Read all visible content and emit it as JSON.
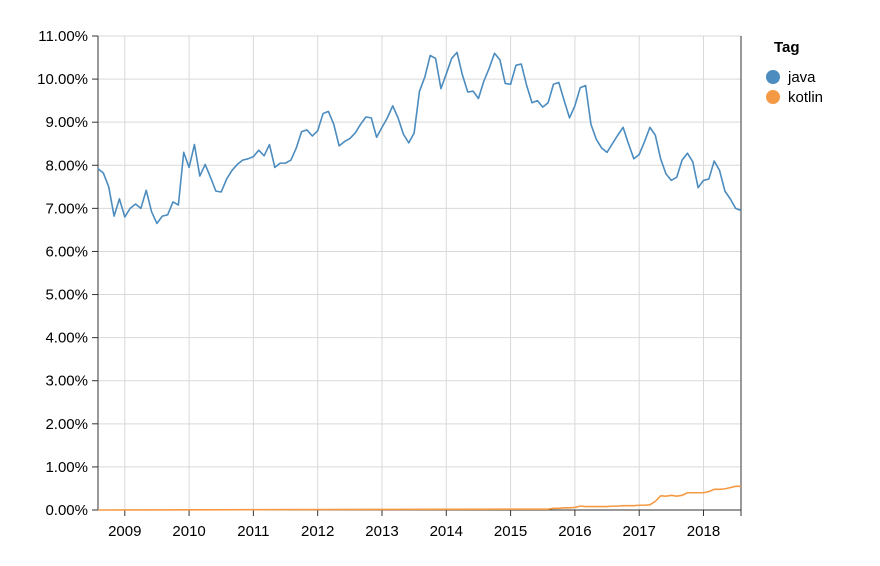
{
  "chart_data": {
    "type": "line",
    "title": "",
    "xlabel": "",
    "ylabel": "",
    "x_start": "2008-08",
    "x_end": "2018-08",
    "xlim": [
      "2008-08",
      "2018-08"
    ],
    "x_ticks": [
      "2009",
      "2010",
      "2011",
      "2012",
      "2013",
      "2014",
      "2015",
      "2016",
      "2017",
      "2018"
    ],
    "ylim": [
      0,
      11
    ],
    "y_ticks": [
      "0.00%",
      "1.00%",
      "2.00%",
      "3.00%",
      "4.00%",
      "5.00%",
      "6.00%",
      "7.00%",
      "8.00%",
      "9.00%",
      "10.00%",
      "11.00%"
    ],
    "y_unit": "%",
    "grid": true,
    "legend": {
      "title": "Tag",
      "placement": "top-right"
    },
    "series": [
      {
        "name": "java",
        "color": "#4c8cbf",
        "points": [
          {
            "x": "2008-08",
            "y": 7.92
          },
          {
            "x": "2008-09",
            "y": 7.82
          },
          {
            "x": "2008-10",
            "y": 7.5
          },
          {
            "x": "2008-11",
            "y": 6.82
          },
          {
            "x": "2008-12",
            "y": 7.22
          },
          {
            "x": "2009-01",
            "y": 6.8
          },
          {
            "x": "2009-02",
            "y": 7.0
          },
          {
            "x": "2009-03",
            "y": 7.1
          },
          {
            "x": "2009-04",
            "y": 7.0
          },
          {
            "x": "2009-05",
            "y": 7.42
          },
          {
            "x": "2009-06",
            "y": 6.92
          },
          {
            "x": "2009-07",
            "y": 6.65
          },
          {
            "x": "2009-08",
            "y": 6.82
          },
          {
            "x": "2009-09",
            "y": 6.85
          },
          {
            "x": "2009-10",
            "y": 7.15
          },
          {
            "x": "2009-11",
            "y": 7.08
          },
          {
            "x": "2009-12",
            "y": 8.3
          },
          {
            "x": "2010-01",
            "y": 7.95
          },
          {
            "x": "2010-02",
            "y": 8.48
          },
          {
            "x": "2010-03",
            "y": 7.75
          },
          {
            "x": "2010-04",
            "y": 8.02
          },
          {
            "x": "2010-05",
            "y": 7.72
          },
          {
            "x": "2010-06",
            "y": 7.4
          },
          {
            "x": "2010-07",
            "y": 7.38
          },
          {
            "x": "2010-08",
            "y": 7.68
          },
          {
            "x": "2010-09",
            "y": 7.88
          },
          {
            "x": "2010-10",
            "y": 8.02
          },
          {
            "x": "2010-11",
            "y": 8.12
          },
          {
            "x": "2010-12",
            "y": 8.15
          },
          {
            "x": "2011-01",
            "y": 8.2
          },
          {
            "x": "2011-02",
            "y": 8.35
          },
          {
            "x": "2011-03",
            "y": 8.22
          },
          {
            "x": "2011-04",
            "y": 8.48
          },
          {
            "x": "2011-05",
            "y": 7.95
          },
          {
            "x": "2011-06",
            "y": 8.05
          },
          {
            "x": "2011-07",
            "y": 8.05
          },
          {
            "x": "2011-08",
            "y": 8.12
          },
          {
            "x": "2011-09",
            "y": 8.4
          },
          {
            "x": "2011-10",
            "y": 8.78
          },
          {
            "x": "2011-11",
            "y": 8.82
          },
          {
            "x": "2011-12",
            "y": 8.68
          },
          {
            "x": "2012-01",
            "y": 8.8
          },
          {
            "x": "2012-02",
            "y": 9.2
          },
          {
            "x": "2012-03",
            "y": 9.25
          },
          {
            "x": "2012-04",
            "y": 8.95
          },
          {
            "x": "2012-05",
            "y": 8.45
          },
          {
            "x": "2012-06",
            "y": 8.55
          },
          {
            "x": "2012-07",
            "y": 8.62
          },
          {
            "x": "2012-08",
            "y": 8.75
          },
          {
            "x": "2012-09",
            "y": 8.95
          },
          {
            "x": "2012-10",
            "y": 9.12
          },
          {
            "x": "2012-11",
            "y": 9.1
          },
          {
            "x": "2012-12",
            "y": 8.65
          },
          {
            "x": "2013-01",
            "y": 8.88
          },
          {
            "x": "2013-02",
            "y": 9.1
          },
          {
            "x": "2013-03",
            "y": 9.38
          },
          {
            "x": "2013-04",
            "y": 9.1
          },
          {
            "x": "2013-05",
            "y": 8.72
          },
          {
            "x": "2013-06",
            "y": 8.52
          },
          {
            "x": "2013-07",
            "y": 8.75
          },
          {
            "x": "2013-08",
            "y": 9.72
          },
          {
            "x": "2013-09",
            "y": 10.05
          },
          {
            "x": "2013-10",
            "y": 10.55
          },
          {
            "x": "2013-11",
            "y": 10.48
          },
          {
            "x": "2013-12",
            "y": 9.78
          },
          {
            "x": "2014-01",
            "y": 10.12
          },
          {
            "x": "2014-02",
            "y": 10.48
          },
          {
            "x": "2014-03",
            "y": 10.62
          },
          {
            "x": "2014-04",
            "y": 10.1
          },
          {
            "x": "2014-05",
            "y": 9.7
          },
          {
            "x": "2014-06",
            "y": 9.72
          },
          {
            "x": "2014-07",
            "y": 9.55
          },
          {
            "x": "2014-08",
            "y": 9.95
          },
          {
            "x": "2014-09",
            "y": 10.25
          },
          {
            "x": "2014-10",
            "y": 10.6
          },
          {
            "x": "2014-11",
            "y": 10.45
          },
          {
            "x": "2014-12",
            "y": 9.9
          },
          {
            "x": "2015-01",
            "y": 9.88
          },
          {
            "x": "2015-02",
            "y": 10.32
          },
          {
            "x": "2015-03",
            "y": 10.35
          },
          {
            "x": "2015-04",
            "y": 9.85
          },
          {
            "x": "2015-05",
            "y": 9.45
          },
          {
            "x": "2015-06",
            "y": 9.5
          },
          {
            "x": "2015-07",
            "y": 9.35
          },
          {
            "x": "2015-08",
            "y": 9.45
          },
          {
            "x": "2015-09",
            "y": 9.88
          },
          {
            "x": "2015-10",
            "y": 9.92
          },
          {
            "x": "2015-11",
            "y": 9.5
          },
          {
            "x": "2015-12",
            "y": 9.1
          },
          {
            "x": "2016-01",
            "y": 9.38
          },
          {
            "x": "2016-02",
            "y": 9.8
          },
          {
            "x": "2016-03",
            "y": 9.85
          },
          {
            "x": "2016-04",
            "y": 8.95
          },
          {
            "x": "2016-05",
            "y": 8.6
          },
          {
            "x": "2016-06",
            "y": 8.4
          },
          {
            "x": "2016-07",
            "y": 8.3
          },
          {
            "x": "2016-08",
            "y": 8.5
          },
          {
            "x": "2016-09",
            "y": 8.7
          },
          {
            "x": "2016-10",
            "y": 8.88
          },
          {
            "x": "2016-11",
            "y": 8.5
          },
          {
            "x": "2016-12",
            "y": 8.15
          },
          {
            "x": "2017-01",
            "y": 8.25
          },
          {
            "x": "2017-02",
            "y": 8.55
          },
          {
            "x": "2017-03",
            "y": 8.88
          },
          {
            "x": "2017-04",
            "y": 8.7
          },
          {
            "x": "2017-05",
            "y": 8.15
          },
          {
            "x": "2017-06",
            "y": 7.8
          },
          {
            "x": "2017-07",
            "y": 7.65
          },
          {
            "x": "2017-08",
            "y": 7.72
          },
          {
            "x": "2017-09",
            "y": 8.12
          },
          {
            "x": "2017-10",
            "y": 8.28
          },
          {
            "x": "2017-11",
            "y": 8.08
          },
          {
            "x": "2017-12",
            "y": 7.48
          },
          {
            "x": "2018-01",
            "y": 7.65
          },
          {
            "x": "2018-02",
            "y": 7.68
          },
          {
            "x": "2018-03",
            "y": 8.1
          },
          {
            "x": "2018-04",
            "y": 7.88
          },
          {
            "x": "2018-05",
            "y": 7.4
          },
          {
            "x": "2018-06",
            "y": 7.22
          },
          {
            "x": "2018-07",
            "y": 7.0
          },
          {
            "x": "2018-08",
            "y": 6.95
          }
        ]
      },
      {
        "name": "kotlin",
        "color": "#f59a44",
        "points": [
          {
            "x": "2008-08",
            "y": 0.0
          },
          {
            "x": "2015-08",
            "y": 0.02
          },
          {
            "x": "2015-09",
            "y": 0.04
          },
          {
            "x": "2015-10",
            "y": 0.04
          },
          {
            "x": "2015-11",
            "y": 0.05
          },
          {
            "x": "2015-12",
            "y": 0.05
          },
          {
            "x": "2016-01",
            "y": 0.06
          },
          {
            "x": "2016-02",
            "y": 0.09
          },
          {
            "x": "2016-03",
            "y": 0.08
          },
          {
            "x": "2016-04",
            "y": 0.08
          },
          {
            "x": "2016-05",
            "y": 0.08
          },
          {
            "x": "2016-06",
            "y": 0.08
          },
          {
            "x": "2016-07",
            "y": 0.08
          },
          {
            "x": "2016-08",
            "y": 0.09
          },
          {
            "x": "2016-09",
            "y": 0.09
          },
          {
            "x": "2016-10",
            "y": 0.1
          },
          {
            "x": "2016-11",
            "y": 0.1
          },
          {
            "x": "2016-12",
            "y": 0.1
          },
          {
            "x": "2017-01",
            "y": 0.11
          },
          {
            "x": "2017-02",
            "y": 0.11
          },
          {
            "x": "2017-03",
            "y": 0.12
          },
          {
            "x": "2017-04",
            "y": 0.2
          },
          {
            "x": "2017-05",
            "y": 0.33
          },
          {
            "x": "2017-06",
            "y": 0.32
          },
          {
            "x": "2017-07",
            "y": 0.34
          },
          {
            "x": "2017-08",
            "y": 0.32
          },
          {
            "x": "2017-09",
            "y": 0.34
          },
          {
            "x": "2017-10",
            "y": 0.4
          },
          {
            "x": "2017-11",
            "y": 0.4
          },
          {
            "x": "2017-12",
            "y": 0.4
          },
          {
            "x": "2018-01",
            "y": 0.4
          },
          {
            "x": "2018-02",
            "y": 0.43
          },
          {
            "x": "2018-03",
            "y": 0.48
          },
          {
            "x": "2018-04",
            "y": 0.48
          },
          {
            "x": "2018-05",
            "y": 0.49
          },
          {
            "x": "2018-06",
            "y": 0.52
          },
          {
            "x": "2018-07",
            "y": 0.55
          },
          {
            "x": "2018-08",
            "y": 0.55
          }
        ]
      }
    ]
  }
}
